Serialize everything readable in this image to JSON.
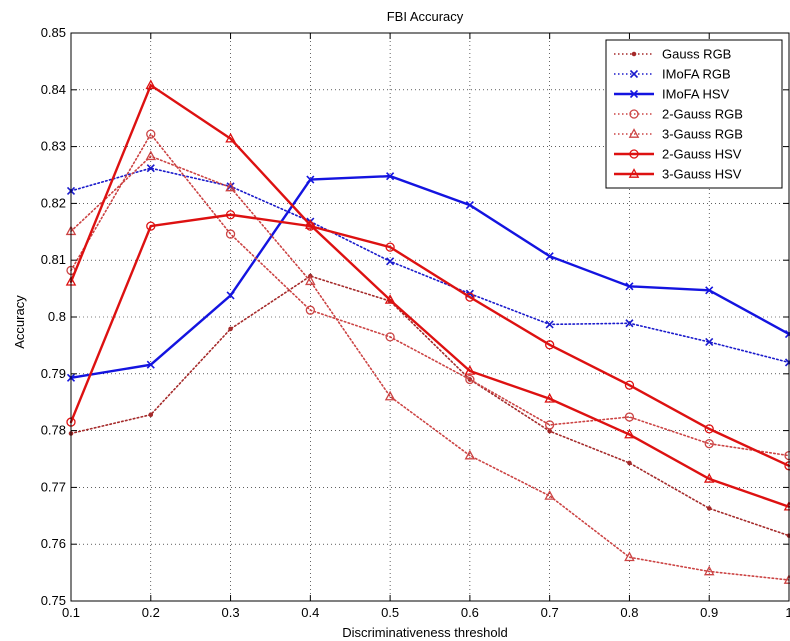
{
  "chart_data": {
    "type": "line",
    "title": "FBI Accuracy",
    "xlabel": "Discriminativeness threshold",
    "ylabel": "Accuracy",
    "xlim": [
      0.1,
      1
    ],
    "ylim": [
      0.75,
      0.85
    ],
    "x": [
      0.1,
      0.2,
      0.3,
      0.4,
      0.5,
      0.6,
      0.7,
      0.8,
      0.9,
      1.0
    ],
    "x_tick_labels": [
      "0.1",
      "0.2",
      "0.3",
      "0.4",
      "0.5",
      "0.6",
      "0.7",
      "0.8",
      "0.9",
      "1"
    ],
    "y_ticks": [
      0.75,
      0.76,
      0.77,
      0.78,
      0.79,
      0.8,
      0.81,
      0.82,
      0.83,
      0.84,
      0.85
    ],
    "y_tick_labels": [
      "0.75",
      "0.76",
      "0.77",
      "0.78",
      "0.79",
      "0.8",
      "0.81",
      "0.82",
      "0.83",
      "0.84",
      "0.85"
    ],
    "grid": true,
    "legend_position": "top-right",
    "series": [
      {
        "name": "Gauss RGB",
        "color": "#a52a2a",
        "line": "dotted",
        "marker": "dot",
        "values": [
          0.7795,
          0.7828,
          0.7979,
          0.8072,
          0.8028,
          0.789,
          0.7799,
          0.7743,
          0.7663,
          0.7615
        ]
      },
      {
        "name": "IMoFA RGB",
        "color": "#1a1acc",
        "line": "dotted",
        "marker": "x",
        "values": [
          0.8222,
          0.8262,
          0.823,
          0.8168,
          0.8098,
          0.8041,
          0.7987,
          0.7989,
          0.7956,
          0.792
        ]
      },
      {
        "name": "IMoFA HSV",
        "color": "#1414e0",
        "line": "solid",
        "marker": "x",
        "values": [
          0.7893,
          0.7916,
          0.8038,
          0.8242,
          0.8248,
          0.8197,
          0.8107,
          0.8054,
          0.8047,
          0.797
        ]
      },
      {
        "name": "2-Gauss RGB",
        "color": "#cc4444",
        "line": "dotted",
        "marker": "circle",
        "values": [
          0.8082,
          0.8322,
          0.8146,
          0.8012,
          0.7965,
          0.789,
          0.781,
          0.7824,
          0.7777,
          0.7756
        ]
      },
      {
        "name": "3-Gauss RGB",
        "color": "#cc4444",
        "line": "dotted",
        "marker": "triangle",
        "values": [
          0.8151,
          0.8283,
          0.8228,
          0.8063,
          0.786,
          0.7756,
          0.7685,
          0.7577,
          0.7552,
          0.7537
        ]
      },
      {
        "name": "2-Gauss HSV",
        "color": "#dd1111",
        "line": "solid",
        "marker": "circle",
        "values": [
          0.7815,
          0.816,
          0.818,
          0.816,
          0.8123,
          0.8035,
          0.7951,
          0.788,
          0.7803,
          0.7738
        ]
      },
      {
        "name": "3-Gauss HSV",
        "color": "#dd1111",
        "line": "solid",
        "marker": "triangle",
        "values": [
          0.8062,
          0.8408,
          0.8314,
          0.8162,
          0.803,
          0.7905,
          0.7856,
          0.7793,
          0.7715,
          0.7666
        ]
      }
    ]
  }
}
